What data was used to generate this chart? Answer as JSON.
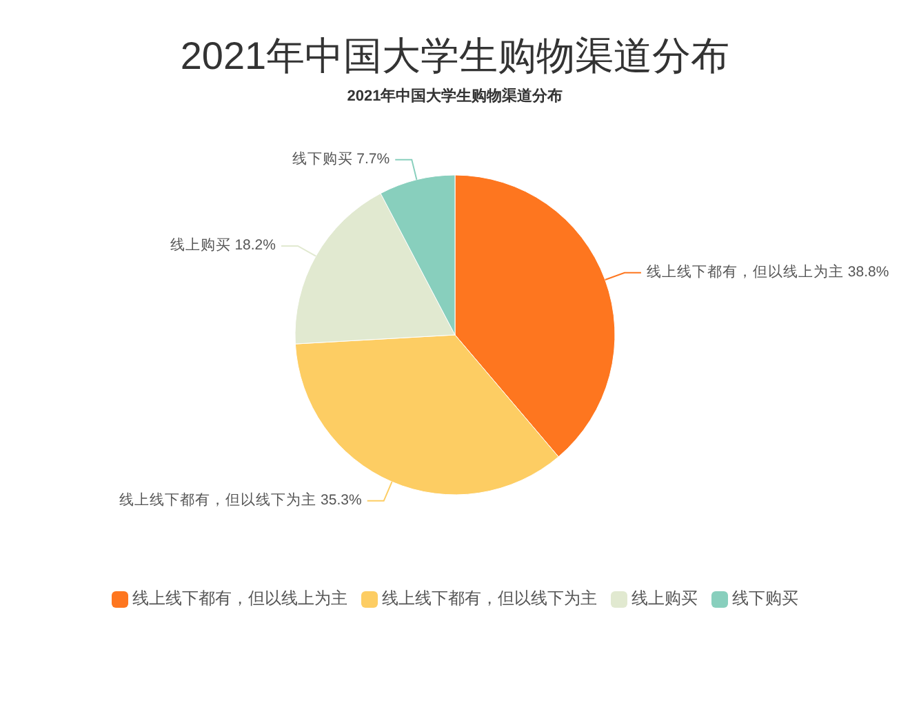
{
  "chart_data": {
    "type": "pie",
    "title": "2021年中国大学生购物渠道分布",
    "subtitle": "2021年中国大学生购物渠道分布",
    "categories": [
      "线上线下都有，但以线上为主",
      "线上线下都有，但以线下为主",
      "线上购买",
      "线下购买"
    ],
    "values": [
      38.8,
      35.3,
      18.2,
      7.7
    ],
    "colors": [
      "#fe761f",
      "#fdcd63",
      "#e1e9d0",
      "#88cfbd"
    ],
    "value_labels": [
      "38.8%",
      "35.3%",
      "18.2%",
      "7.7%"
    ],
    "legend": "bottom"
  }
}
